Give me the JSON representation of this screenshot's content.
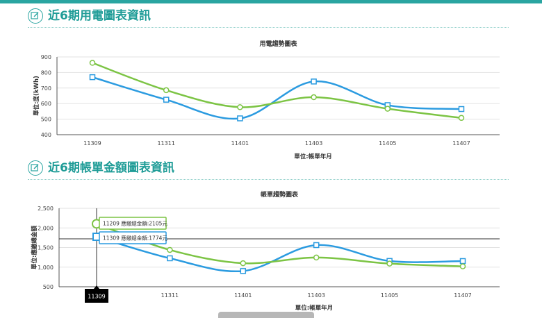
{
  "sections": [
    {
      "title": "近6期用電圖表資訊"
    },
    {
      "title": "近6期帳單金額圖表資訊"
    }
  ],
  "chart_data": [
    {
      "type": "line",
      "title": "用電趨勢圖表",
      "xlabel": "單位:帳單年月",
      "ylabel": "單位:度(kWh)",
      "categories": [
        "11309",
        "11311",
        "11401",
        "11403",
        "11405",
        "11407"
      ],
      "ylim": [
        400,
        900
      ],
      "yticks": [
        "400",
        "500",
        "600",
        "700",
        "800",
        "900"
      ],
      "ytick_values": [
        400,
        500,
        600,
        700,
        800,
        900
      ],
      "grid": true,
      "series": [
        {
          "values": [
            770,
            625,
            505,
            742,
            590,
            565
          ],
          "color": "#2b9be0",
          "marker": "square"
        },
        {
          "values": [
            862,
            686,
            577,
            641,
            567,
            508
          ],
          "color": "#7cc444",
          "marker": "circle"
        }
      ]
    },
    {
      "type": "line",
      "title": "帳單趨勢圖表",
      "xlabel": "單位:帳單年月",
      "ylabel": "單位:應繳總金額",
      "categories": [
        "11309",
        "11311",
        "11401",
        "11403",
        "11405",
        "11407"
      ],
      "ylim": [
        500,
        2500
      ],
      "yticks": [
        "500",
        "1,000",
        "1,500",
        "2,000",
        "2,500"
      ],
      "ytick_values": [
        500,
        1000,
        1500,
        2000,
        2500
      ],
      "grid": true,
      "series": [
        {
          "values": [
            1774,
            1226,
            901,
            1562,
            1158,
            1155
          ],
          "color": "#2b9be0",
          "marker": "square"
        },
        {
          "values": [
            2105,
            1439,
            1100,
            1245,
            1090,
            1020
          ],
          "color": "#7cc444",
          "marker": "circle"
        }
      ],
      "crosshair": {
        "category": "11309",
        "x_label": "11309"
      },
      "tooltips": [
        {
          "text": "11209 應繳總金額:2105元",
          "color": "#7cc444",
          "value": 2105
        },
        {
          "text": "11309 應繳總金額:1774元",
          "color": "#2b9be0",
          "value": 1774
        }
      ]
    }
  ]
}
